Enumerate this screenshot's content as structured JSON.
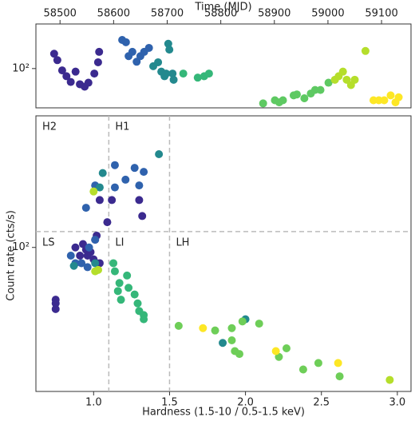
{
  "chart_data": [
    {
      "type": "scatter",
      "xlabel": "Time (MJD)",
      "xlim": [
        58455,
        59155
      ],
      "xticks": [
        58500,
        58600,
        58700,
        58800,
        58900,
        59000,
        59100
      ],
      "ylim": [
        52,
        210
      ],
      "yticks": [
        {
          "value": 100,
          "label": "10²"
        }
      ],
      "log_y": true,
      "x_axis_position": "top",
      "series": [
        {
          "color": "#3b2a8f",
          "x": [
            58489,
            58495,
            58504,
            58512,
            58520,
            58529,
            58537,
            58546,
            58553,
            58564,
            58571,
            58573
          ],
          "values": [
            128,
            115,
            97,
            88,
            80,
            95,
            77,
            74,
            79,
            92,
            111,
            132
          ]
        },
        {
          "color": "#2f62ad",
          "x": [
            58616,
            58623,
            58628,
            58635,
            58643,
            58650,
            58657,
            58666
          ],
          "values": [
            161,
            155,
            123,
            132,
            112,
            123,
            132,
            141
          ]
        },
        {
          "color": "#23898e",
          "x": [
            58674,
            58683,
            58689,
            58695,
            58702,
            58704,
            58698,
            58710,
            58712
          ],
          "values": [
            104,
            111,
            95,
            88,
            151,
            137,
            92,
            92,
            83
          ]
        },
        {
          "color": "#35b779",
          "x": [
            58730,
            58757,
            58769,
            58778
          ],
          "values": [
            92,
            86,
            88,
            92
          ]
        },
        {
          "color": "#5ec962",
          "x": [
            58879,
            58901,
            58909,
            58916,
            58936,
            58942,
            58956,
            58968,
            58976,
            58986,
            59001
          ],
          "values": [
            56,
            59,
            57,
            59,
            64,
            65,
            61,
            66,
            70,
            70,
            79
          ]
        },
        {
          "color": "#b5de2b",
          "x": [
            59013,
            59020,
            59028,
            59035,
            59043,
            59050,
            59070
          ],
          "values": [
            83,
            88,
            95,
            83,
            76,
            83,
            134
          ]
        },
        {
          "color": "#fde725",
          "x": [
            59085,
            59095,
            59105,
            59117,
            59126,
            59132
          ],
          "values": [
            59,
            59,
            59,
            64,
            57,
            62
          ]
        }
      ]
    },
    {
      "type": "scatter",
      "xlabel": "Hardness (1.5-10 / 0.5-1.5 keV)",
      "ylabel": "Count rate (cts/s)",
      "xlim": [
        0.62,
        3.09
      ],
      "xticks": [
        {
          "value": 1,
          "label": "1.0"
        },
        1.5,
        {
          "value": 2,
          "label": "2.0"
        },
        2.5,
        {
          "value": 3,
          "label": "3.0"
        }
      ],
      "ylim": [
        28,
        320
      ],
      "yticks": [
        {
          "value": 100,
          "label": "10²"
        }
      ],
      "log_y": true,
      "vlines": [
        1.1,
        1.5
      ],
      "hlines": [
        115
      ],
      "annotations": [
        "H2",
        "H1",
        "LS",
        "LI",
        "LH"
      ],
      "series": [
        {
          "color": "#3b2a8f",
          "x": [
            0.75,
            0.75,
            0.75,
            0.88,
            0.93,
            0.96,
            0.98,
            1.01,
            1.02,
            1.04,
            1.0,
            0.91,
            0.95,
            1.09,
            1.12,
            1.04,
            1.3,
            1.32,
            1.02
          ],
          "values": [
            63,
            61,
            58,
            100,
            103,
            93,
            96,
            107,
            87,
            87,
            90,
            93,
            98,
            125,
            152,
            152,
            152,
            132,
            111
          ]
        },
        {
          "color": "#2f62ad",
          "x": [
            0.95,
            1.01,
            1.14,
            1.21,
            1.27,
            1.33,
            1.14,
            1.3,
            0.85,
            0.88,
            0.92,
            0.96,
            1.01,
            0.97
          ],
          "values": [
            142,
            173,
            207,
            182,
            202,
            195,
            170,
            173,
            93,
            87,
            87,
            84,
            107,
            100
          ]
        },
        {
          "color": "#23898e",
          "x": [
            1.06,
            0.87,
            1.43,
            1.04,
            1.01,
            1.85,
            2.0
          ],
          "values": [
            193,
            85,
            228,
            170,
            87,
            43,
            53
          ]
        },
        {
          "color": "#35b779",
          "x": [
            1.13,
            1.14,
            1.17,
            1.16,
            1.18,
            1.22,
            1.23,
            1.27,
            1.29,
            1.3,
            1.33,
            1.33
          ],
          "values": [
            87,
            81,
            73,
            68,
            63,
            78,
            70,
            66,
            61,
            57,
            55,
            53
          ]
        },
        {
          "color": "#6ece58",
          "x": [
            1.56,
            1.91,
            1.91,
            1.8,
            1.98,
            1.96,
            1.93,
            2.09,
            2.22,
            2.27,
            2.38,
            2.48,
            2.62
          ],
          "values": [
            50,
            49,
            44,
            48,
            52,
            39,
            40,
            51,
            38,
            41,
            34,
            36,
            32
          ]
        },
        {
          "color": "#b5de2b",
          "x": [
            1.01,
            1.03,
            1.0,
            2.95
          ],
          "values": [
            81,
            82,
            164,
            31
          ]
        },
        {
          "color": "#fde725",
          "x": [
            1.72,
            2.2,
            2.61
          ],
          "values": [
            49,
            40,
            36
          ]
        }
      ]
    }
  ]
}
